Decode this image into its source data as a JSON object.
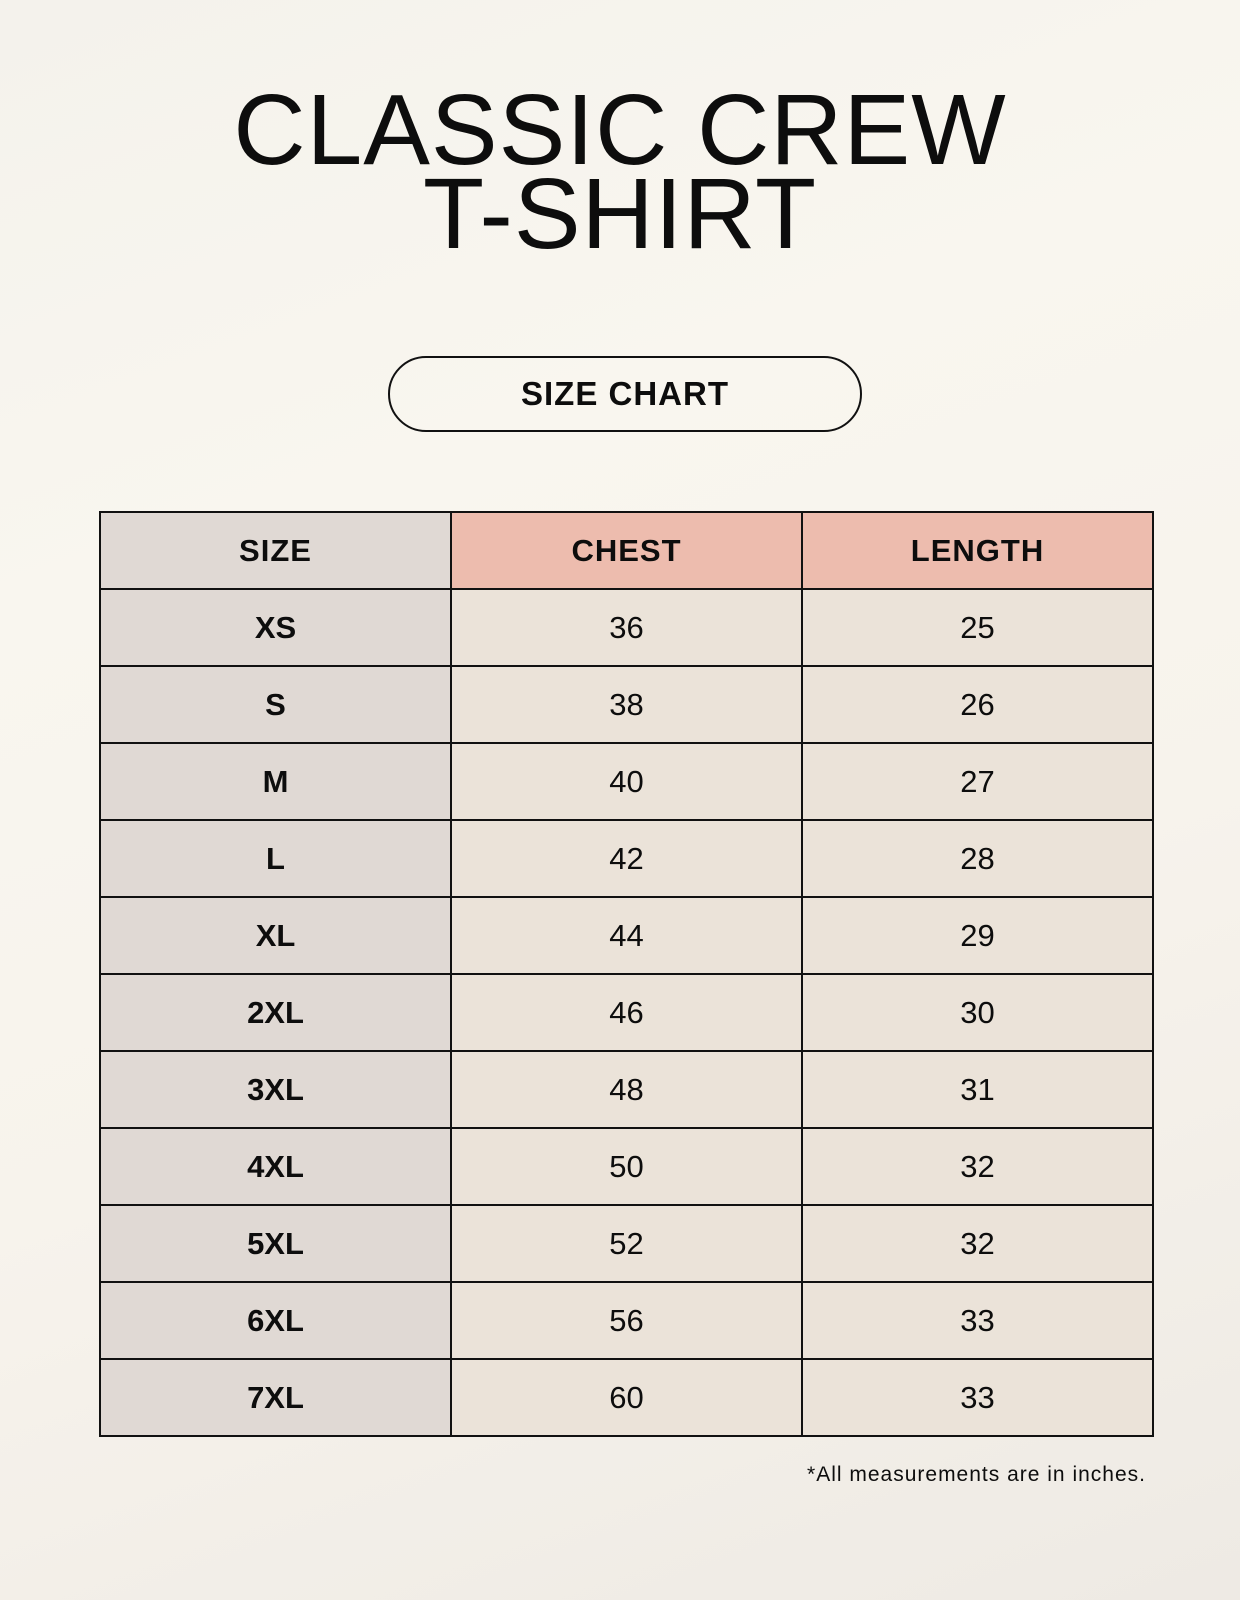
{
  "title": {
    "line1": "CLASSIC CREW",
    "line2": "T-SHIRT"
  },
  "badge": "SIZE CHART",
  "table": {
    "headers": [
      "SIZE",
      "CHEST",
      "LENGTH"
    ],
    "rows": [
      [
        "XS",
        "36",
        "25"
      ],
      [
        "S",
        "38",
        "26"
      ],
      [
        "M",
        "40",
        "27"
      ],
      [
        "L",
        "42",
        "28"
      ],
      [
        "XL",
        "44",
        "29"
      ],
      [
        "2XL",
        "46",
        "30"
      ],
      [
        "3XL",
        "48",
        "31"
      ],
      [
        "4XL",
        "50",
        "32"
      ],
      [
        "5XL",
        "52",
        "32"
      ],
      [
        "6XL",
        "56",
        "33"
      ],
      [
        "7XL",
        "60",
        "33"
      ]
    ]
  },
  "footnote": "*All measurements are in inches.",
  "colors": {
    "size_column": "#e0d9d4",
    "header_accent": "#edbcae",
    "cells": "#ebe3d9",
    "background": "#f8f5ef"
  }
}
